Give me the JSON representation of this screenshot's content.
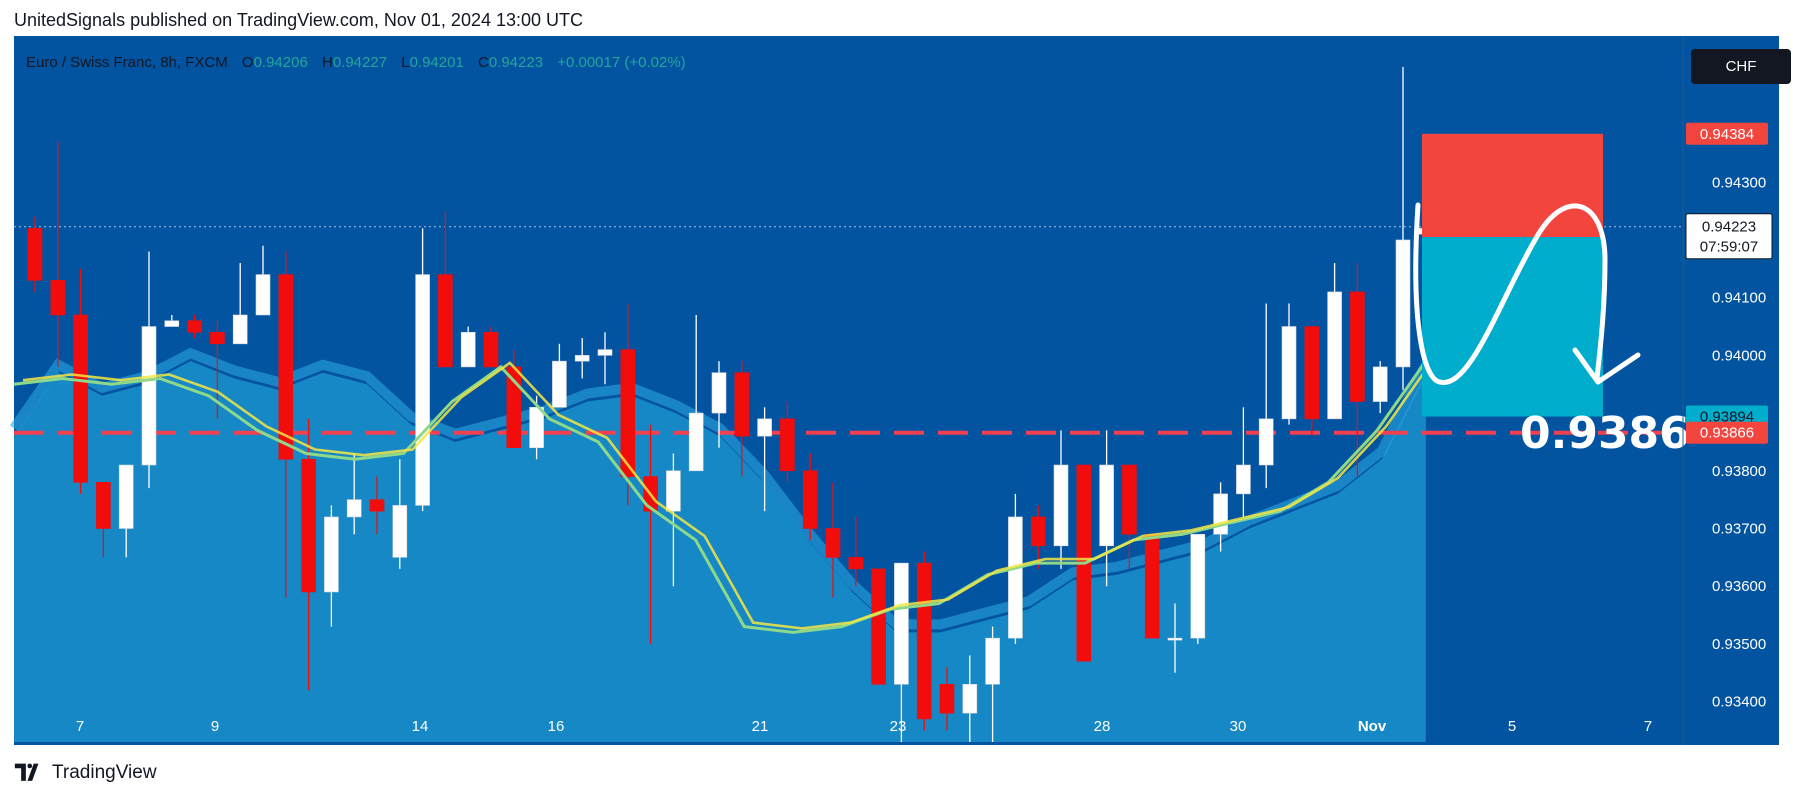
{
  "header": {
    "text": "UnitedSignals published on TradingView.com, Nov 01, 2024 13:00 UTC"
  },
  "footer": {
    "brand": "TradingView",
    "logo_icon": "tradingview-logo-icon"
  },
  "legend": {
    "symbol": "Euro / Swiss Franc, 8h, FXCM",
    "o_label": "O",
    "o": "0.94206",
    "h_label": "H",
    "h": "0.94227",
    "l_label": "L",
    "l": "0.94201",
    "c_label": "C",
    "c": "0.94223",
    "change": "+0.00017 (+0.02%)"
  },
  "currency": "CHF",
  "price_labels": {
    "stop": "0.94384",
    "last": "0.94223",
    "countdown": "07:59:07",
    "entry": "0.94205",
    "target": "0.93894",
    "level": "0.93866"
  },
  "annotation": {
    "text": "0.9386"
  },
  "colors": {
    "background": "#0253a0",
    "up": "#ffffff",
    "down": "#f20d0d",
    "ma_fast": "#f5e642",
    "ma_slow": "#8fd88a",
    "ribbon": "#1e9ad2",
    "stop_zone": "#f2453d",
    "target_zone": "#00adcc",
    "level_line": "#f24050"
  },
  "chart_data": {
    "type": "candlestick",
    "x_ticks": [
      "7",
      "9",
      "14",
      "16",
      "21",
      "23",
      "28",
      "30",
      "Nov",
      "5",
      "7"
    ],
    "y_ticks": [
      "0.93400",
      "0.93500",
      "0.93600",
      "0.93700",
      "0.93800",
      "0.94000",
      "0.94100",
      "0.94300"
    ],
    "ylim": [
      0.9333,
      0.9455
    ],
    "horizontal_level": 0.93866,
    "candles": [
      [
        0.9422,
        0.9413,
        0.9424,
        0.9411
      ],
      [
        0.9413,
        0.9407,
        0.9437,
        0.9398
      ],
      [
        0.9407,
        0.9378,
        0.9415,
        0.9376
      ],
      [
        0.9378,
        0.937,
        0.9378,
        0.9365
      ],
      [
        0.937,
        0.9381,
        0.9381,
        0.9365
      ],
      [
        0.9381,
        0.9405,
        0.9418,
        0.9377
      ],
      [
        0.9405,
        0.9406,
        0.9407,
        0.9405
      ],
      [
        0.9406,
        0.9404,
        0.9407,
        0.9403
      ],
      [
        0.9404,
        0.9402,
        0.9406,
        0.9389
      ],
      [
        0.9402,
        0.9407,
        0.9416,
        0.9403
      ],
      [
        0.9407,
        0.9414,
        0.9419,
        0.9407
      ],
      [
        0.9414,
        0.9382,
        0.9418,
        0.9358
      ],
      [
        0.9382,
        0.9359,
        0.9389,
        0.9342
      ],
      [
        0.9359,
        0.9372,
        0.9374,
        0.9353
      ],
      [
        0.9372,
        0.9375,
        0.9383,
        0.9369
      ],
      [
        0.9375,
        0.9373,
        0.9379,
        0.9369
      ],
      [
        0.9365,
        0.9374,
        0.9382,
        0.9363
      ],
      [
        0.9374,
        0.9414,
        0.9422,
        0.9373
      ],
      [
        0.9414,
        0.9398,
        0.9425,
        0.9398
      ],
      [
        0.9398,
        0.9404,
        0.9405,
        0.9398
      ],
      [
        0.9404,
        0.9398,
        0.9405,
        0.9398
      ],
      [
        0.9398,
        0.9384,
        0.9401,
        0.9384
      ],
      [
        0.9384,
        0.9391,
        0.9393,
        0.9382
      ],
      [
        0.9391,
        0.9399,
        0.9402,
        0.9393
      ],
      [
        0.9399,
        0.94,
        0.9403,
        0.9396
      ],
      [
        0.94,
        0.9401,
        0.9404,
        0.9395
      ],
      [
        0.9401,
        0.9379,
        0.9409,
        0.9374
      ],
      [
        0.9379,
        0.9373,
        0.9388,
        0.935
      ],
      [
        0.9373,
        0.938,
        0.9383,
        0.936
      ],
      [
        0.938,
        0.939,
        0.9407,
        0.9386
      ],
      [
        0.939,
        0.9397,
        0.9399,
        0.9384
      ],
      [
        0.9397,
        0.9386,
        0.9399,
        0.9379
      ],
      [
        0.9386,
        0.9389,
        0.9391,
        0.9373
      ],
      [
        0.9389,
        0.938,
        0.9392,
        0.9378
      ],
      [
        0.938,
        0.937,
        0.9383,
        0.9368
      ],
      [
        0.937,
        0.9365,
        0.9378,
        0.9358
      ],
      [
        0.9365,
        0.9363,
        0.9372,
        0.936
      ],
      [
        0.9363,
        0.9343,
        0.9363,
        0.9343
      ],
      [
        0.9343,
        0.9364,
        0.9364,
        0.9333
      ],
      [
        0.9364,
        0.9337,
        0.9366,
        0.9335
      ],
      [
        0.9343,
        0.9338,
        0.9346,
        0.9335
      ],
      [
        0.9338,
        0.9343,
        0.9348,
        0.9333
      ],
      [
        0.9343,
        0.9351,
        0.9353,
        0.9333
      ],
      [
        0.9351,
        0.9372,
        0.9376,
        0.935
      ],
      [
        0.9372,
        0.9367,
        0.9374,
        0.9363
      ],
      [
        0.9367,
        0.9381,
        0.9387,
        0.9363
      ],
      [
        0.9381,
        0.9347,
        0.9381,
        0.9347
      ],
      [
        0.9367,
        0.9381,
        0.9387,
        0.936
      ],
      [
        0.9381,
        0.9369,
        0.9381,
        0.9363
      ],
      [
        0.9369,
        0.9351,
        0.9369,
        0.9351
      ],
      [
        0.9351,
        0.9351,
        0.9357,
        0.9345
      ],
      [
        0.9351,
        0.9369,
        0.9369,
        0.935
      ],
      [
        0.9369,
        0.9376,
        0.9378,
        0.9366
      ],
      [
        0.9376,
        0.9381,
        0.9391,
        0.9372
      ],
      [
        0.9381,
        0.9389,
        0.9409,
        0.9377
      ],
      [
        0.9389,
        0.9405,
        0.9409,
        0.9388
      ],
      [
        0.9405,
        0.9389,
        0.9405,
        0.9386
      ],
      [
        0.9389,
        0.9411,
        0.9416,
        0.9389
      ],
      [
        0.9411,
        0.9392,
        0.9416,
        0.9379
      ],
      [
        0.9392,
        0.9398,
        0.9399,
        0.939
      ],
      [
        0.9398,
        0.942,
        0.945,
        0.9394
      ],
      [
        0.9421,
        0.9422,
        0.9423,
        0.942
      ]
    ],
    "ma_fast": [
      0.9395,
      0.9396,
      0.9395,
      0.9396,
      0.9393,
      0.9387,
      0.9383,
      0.9382,
      0.9383,
      0.9392,
      0.9398,
      0.9389,
      0.9385,
      0.9374,
      0.9368,
      0.9353,
      0.9352,
      0.9353,
      0.9356,
      0.9357,
      0.9362,
      0.9364,
      0.9364,
      0.9368,
      0.9369,
      0.9371,
      0.9373,
      0.9378,
      0.9387,
      0.9399
    ],
    "ma_slow": [
      0.9386,
      0.9397,
      0.9393,
      0.9395,
      0.9399,
      0.9396,
      0.9394,
      0.9397,
      0.9395,
      0.9388,
      0.9385,
      0.9387,
      0.9389,
      0.9392,
      0.9393,
      0.939,
      0.9386,
      0.9378,
      0.9368,
      0.9359,
      0.9352,
      0.9352,
      0.9354,
      0.9356,
      0.9361,
      0.9362,
      0.9364,
      0.9366,
      0.937,
      0.9373,
      0.9376,
      0.9382,
      0.9397
    ],
    "position": {
      "entry": 0.94205,
      "stop": 0.94384,
      "target": 0.93894
    }
  }
}
